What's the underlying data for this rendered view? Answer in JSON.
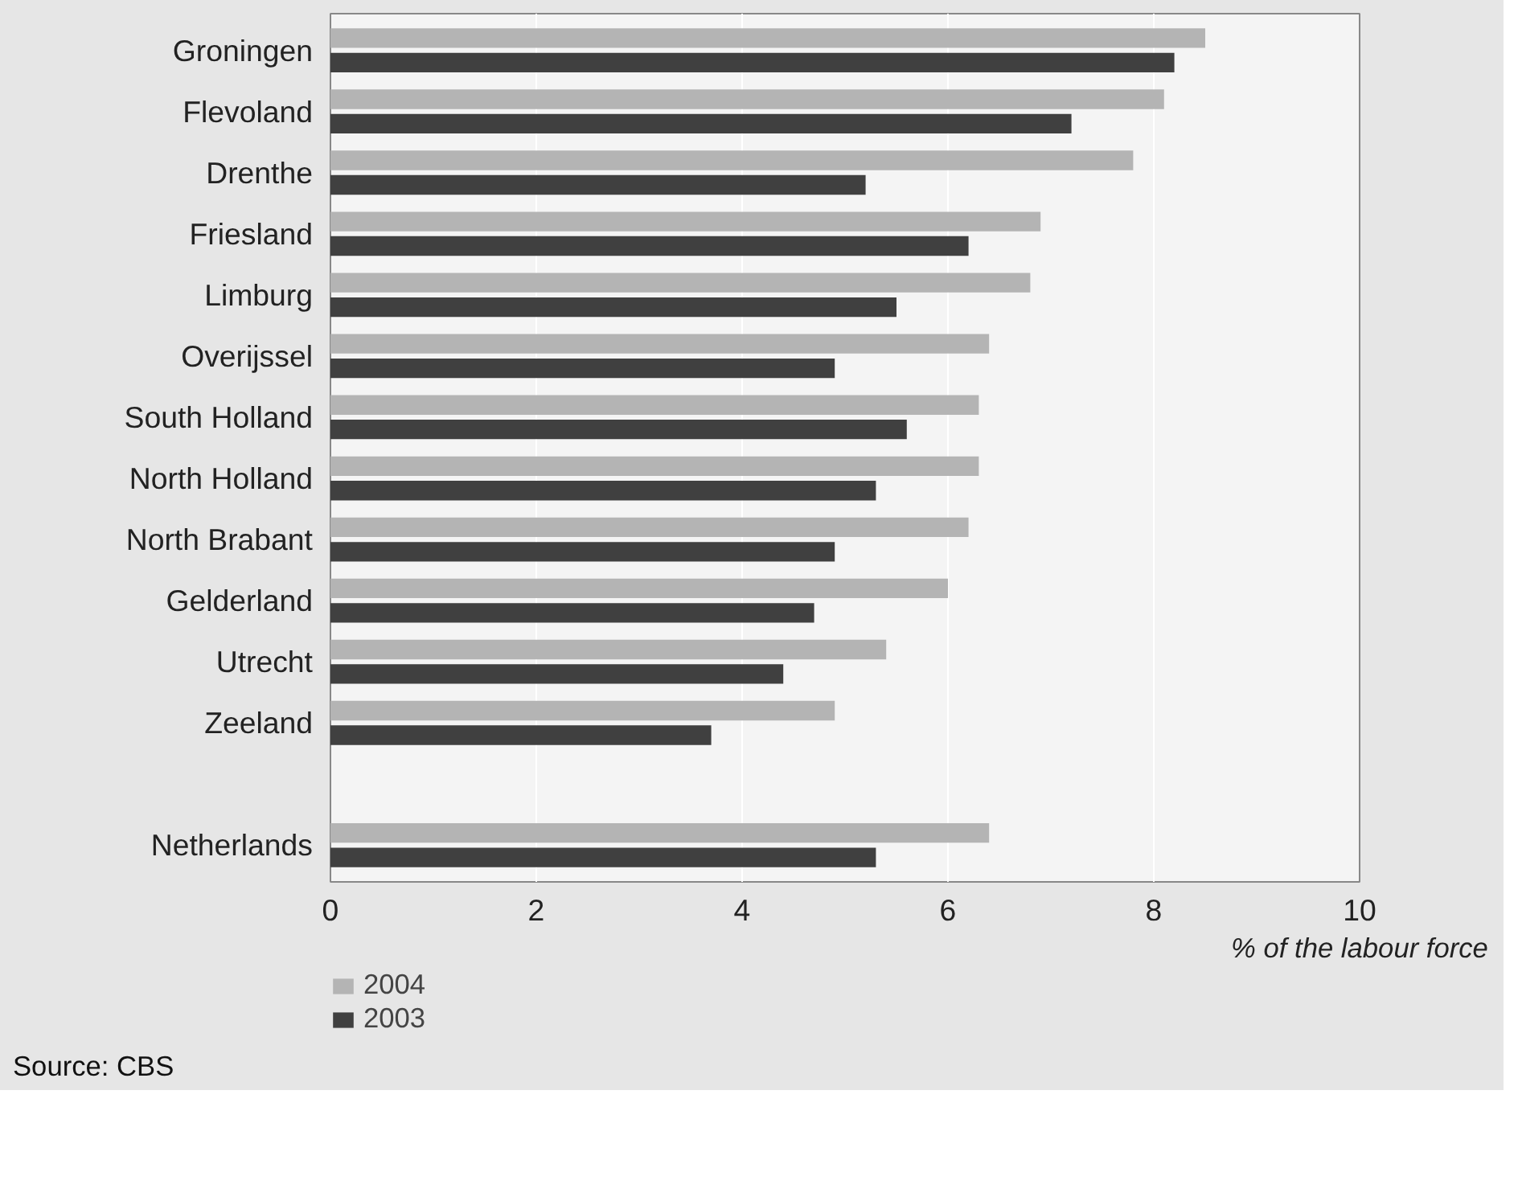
{
  "chart_data": {
    "type": "bar",
    "orientation": "horizontal",
    "categories": [
      "Groningen",
      "Flevoland",
      "Drenthe",
      "Friesland",
      "Limburg",
      "Overijssel",
      "South Holland",
      "North Holland",
      "North Brabant",
      "Gelderland",
      "Utrecht",
      "Zeeland",
      null,
      "Netherlands"
    ],
    "series": [
      {
        "name": "2004",
        "color": "#b4b4b4",
        "values": [
          8.5,
          8.1,
          7.8,
          6.9,
          6.8,
          6.4,
          6.3,
          6.3,
          6.2,
          6.0,
          5.4,
          4.9,
          null,
          6.4
        ]
      },
      {
        "name": "2003",
        "color": "#404040",
        "values": [
          8.2,
          7.2,
          5.2,
          6.2,
          5.5,
          4.9,
          5.6,
          5.3,
          4.9,
          4.7,
          4.4,
          3.7,
          null,
          5.3
        ]
      }
    ],
    "xlabel": "% of the labour force",
    "xlim": [
      0,
      10
    ],
    "xticks": [
      0,
      2,
      4,
      6,
      8,
      10
    ],
    "grid": "x",
    "legend": "bottom",
    "annotations": [
      "Source: CBS"
    ]
  }
}
